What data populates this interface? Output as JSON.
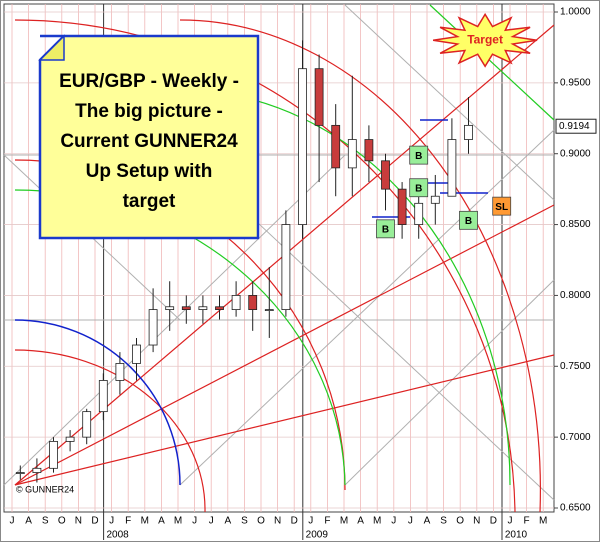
{
  "chart_data": {
    "type": "candlestick",
    "title_lines": [
      "EUR/GBP - Weekly -",
      "The big picture -",
      "Current GUNNER24",
      "Up Setup with",
      "target"
    ],
    "x": [
      "2007-07",
      "2007-08",
      "2007-09",
      "2007-10",
      "2007-11",
      "2007-12",
      "2008-01",
      "2008-02",
      "2008-03",
      "2008-04",
      "2008-05",
      "2008-06",
      "2008-07",
      "2008-08",
      "2008-09",
      "2008-10",
      "2008-11",
      "2008-12",
      "2009-01",
      "2009-02",
      "2009-03",
      "2009-04",
      "2009-05",
      "2009-06",
      "2009-07",
      "2009-08",
      "2009-09",
      "2009-10"
    ],
    "open": [
      0.675,
      0.675,
      0.678,
      0.697,
      0.7,
      0.718,
      0.74,
      0.752,
      0.765,
      0.79,
      0.792,
      0.79,
      0.792,
      0.79,
      0.8,
      0.79,
      0.79,
      0.85,
      0.96,
      0.92,
      0.89,
      0.91,
      0.895,
      0.875,
      0.85,
      0.865,
      0.87,
      0.91
    ],
    "high": [
      0.68,
      0.685,
      0.7,
      0.705,
      0.72,
      0.745,
      0.76,
      0.77,
      0.805,
      0.81,
      0.8,
      0.8,
      0.8,
      0.81,
      0.81,
      0.82,
      0.86,
      0.98,
      0.97,
      0.935,
      0.955,
      0.92,
      0.9,
      0.88,
      0.875,
      0.885,
      0.925,
      0.94
    ],
    "low": [
      0.67,
      0.668,
      0.675,
      0.69,
      0.695,
      0.712,
      0.73,
      0.74,
      0.76,
      0.775,
      0.78,
      0.78,
      0.783,
      0.785,
      0.775,
      0.77,
      0.785,
      0.84,
      0.88,
      0.87,
      0.87,
      0.88,
      0.86,
      0.84,
      0.84,
      0.85,
      0.87,
      0.9
    ],
    "close": [
      0.675,
      0.678,
      0.697,
      0.7,
      0.718,
      0.74,
      0.752,
      0.765,
      0.79,
      0.792,
      0.79,
      0.792,
      0.79,
      0.8,
      0.79,
      0.79,
      0.85,
      0.96,
      0.92,
      0.89,
      0.91,
      0.895,
      0.875,
      0.85,
      0.865,
      0.87,
      0.91,
      0.92
    ],
    "up_color": "#ffffff",
    "down_color": "#c83c3c",
    "months": [
      "J",
      "A",
      "S",
      "O",
      "N",
      "D",
      "J",
      "F",
      "M",
      "A",
      "M",
      "J",
      "J",
      "A",
      "S",
      "O",
      "N",
      "D",
      "J",
      "F",
      "M",
      "A",
      "M",
      "J",
      "J",
      "A",
      "S",
      "O",
      "N",
      "D",
      "J",
      "F",
      "M"
    ],
    "years": [
      "2008",
      "2009",
      "2010"
    ],
    "ylim": [
      0.65,
      1.0
    ],
    "yticks": [
      {
        "value": 0.65,
        "label": "0.6500"
      },
      {
        "value": 0.7,
        "label": "0.7000"
      },
      {
        "value": 0.75,
        "label": "0.7500"
      },
      {
        "value": 0.8,
        "label": "0.8000"
      },
      {
        "value": 0.85,
        "label": "0.8500"
      },
      {
        "value": 0.9,
        "label": "0.9000"
      },
      {
        "value": 0.95,
        "label": "0.9500"
      },
      {
        "value": 1.0,
        "label": "1.0000"
      }
    ],
    "last_price": {
      "value": 0.9194,
      "label": "0.9194"
    },
    "annotations": [
      {
        "text": "B",
        "x": "2009-07",
        "y": 0.899,
        "color": "#99ee99"
      },
      {
        "text": "B",
        "x": "2009-07",
        "y": 0.876,
        "color": "#99ee99"
      },
      {
        "text": "B",
        "x": "2009-05",
        "y": 0.847,
        "color": "#99ee99"
      },
      {
        "text": "B",
        "x": "2009-10",
        "y": 0.853,
        "color": "#99ee99"
      },
      {
        "text": "SL",
        "x": "2009-12",
        "y": 0.863,
        "color": "#ff9933"
      }
    ],
    "target": {
      "text": "Target",
      "x": "2009-11",
      "y": 0.98
    },
    "copyright": "© GUNNER24"
  }
}
